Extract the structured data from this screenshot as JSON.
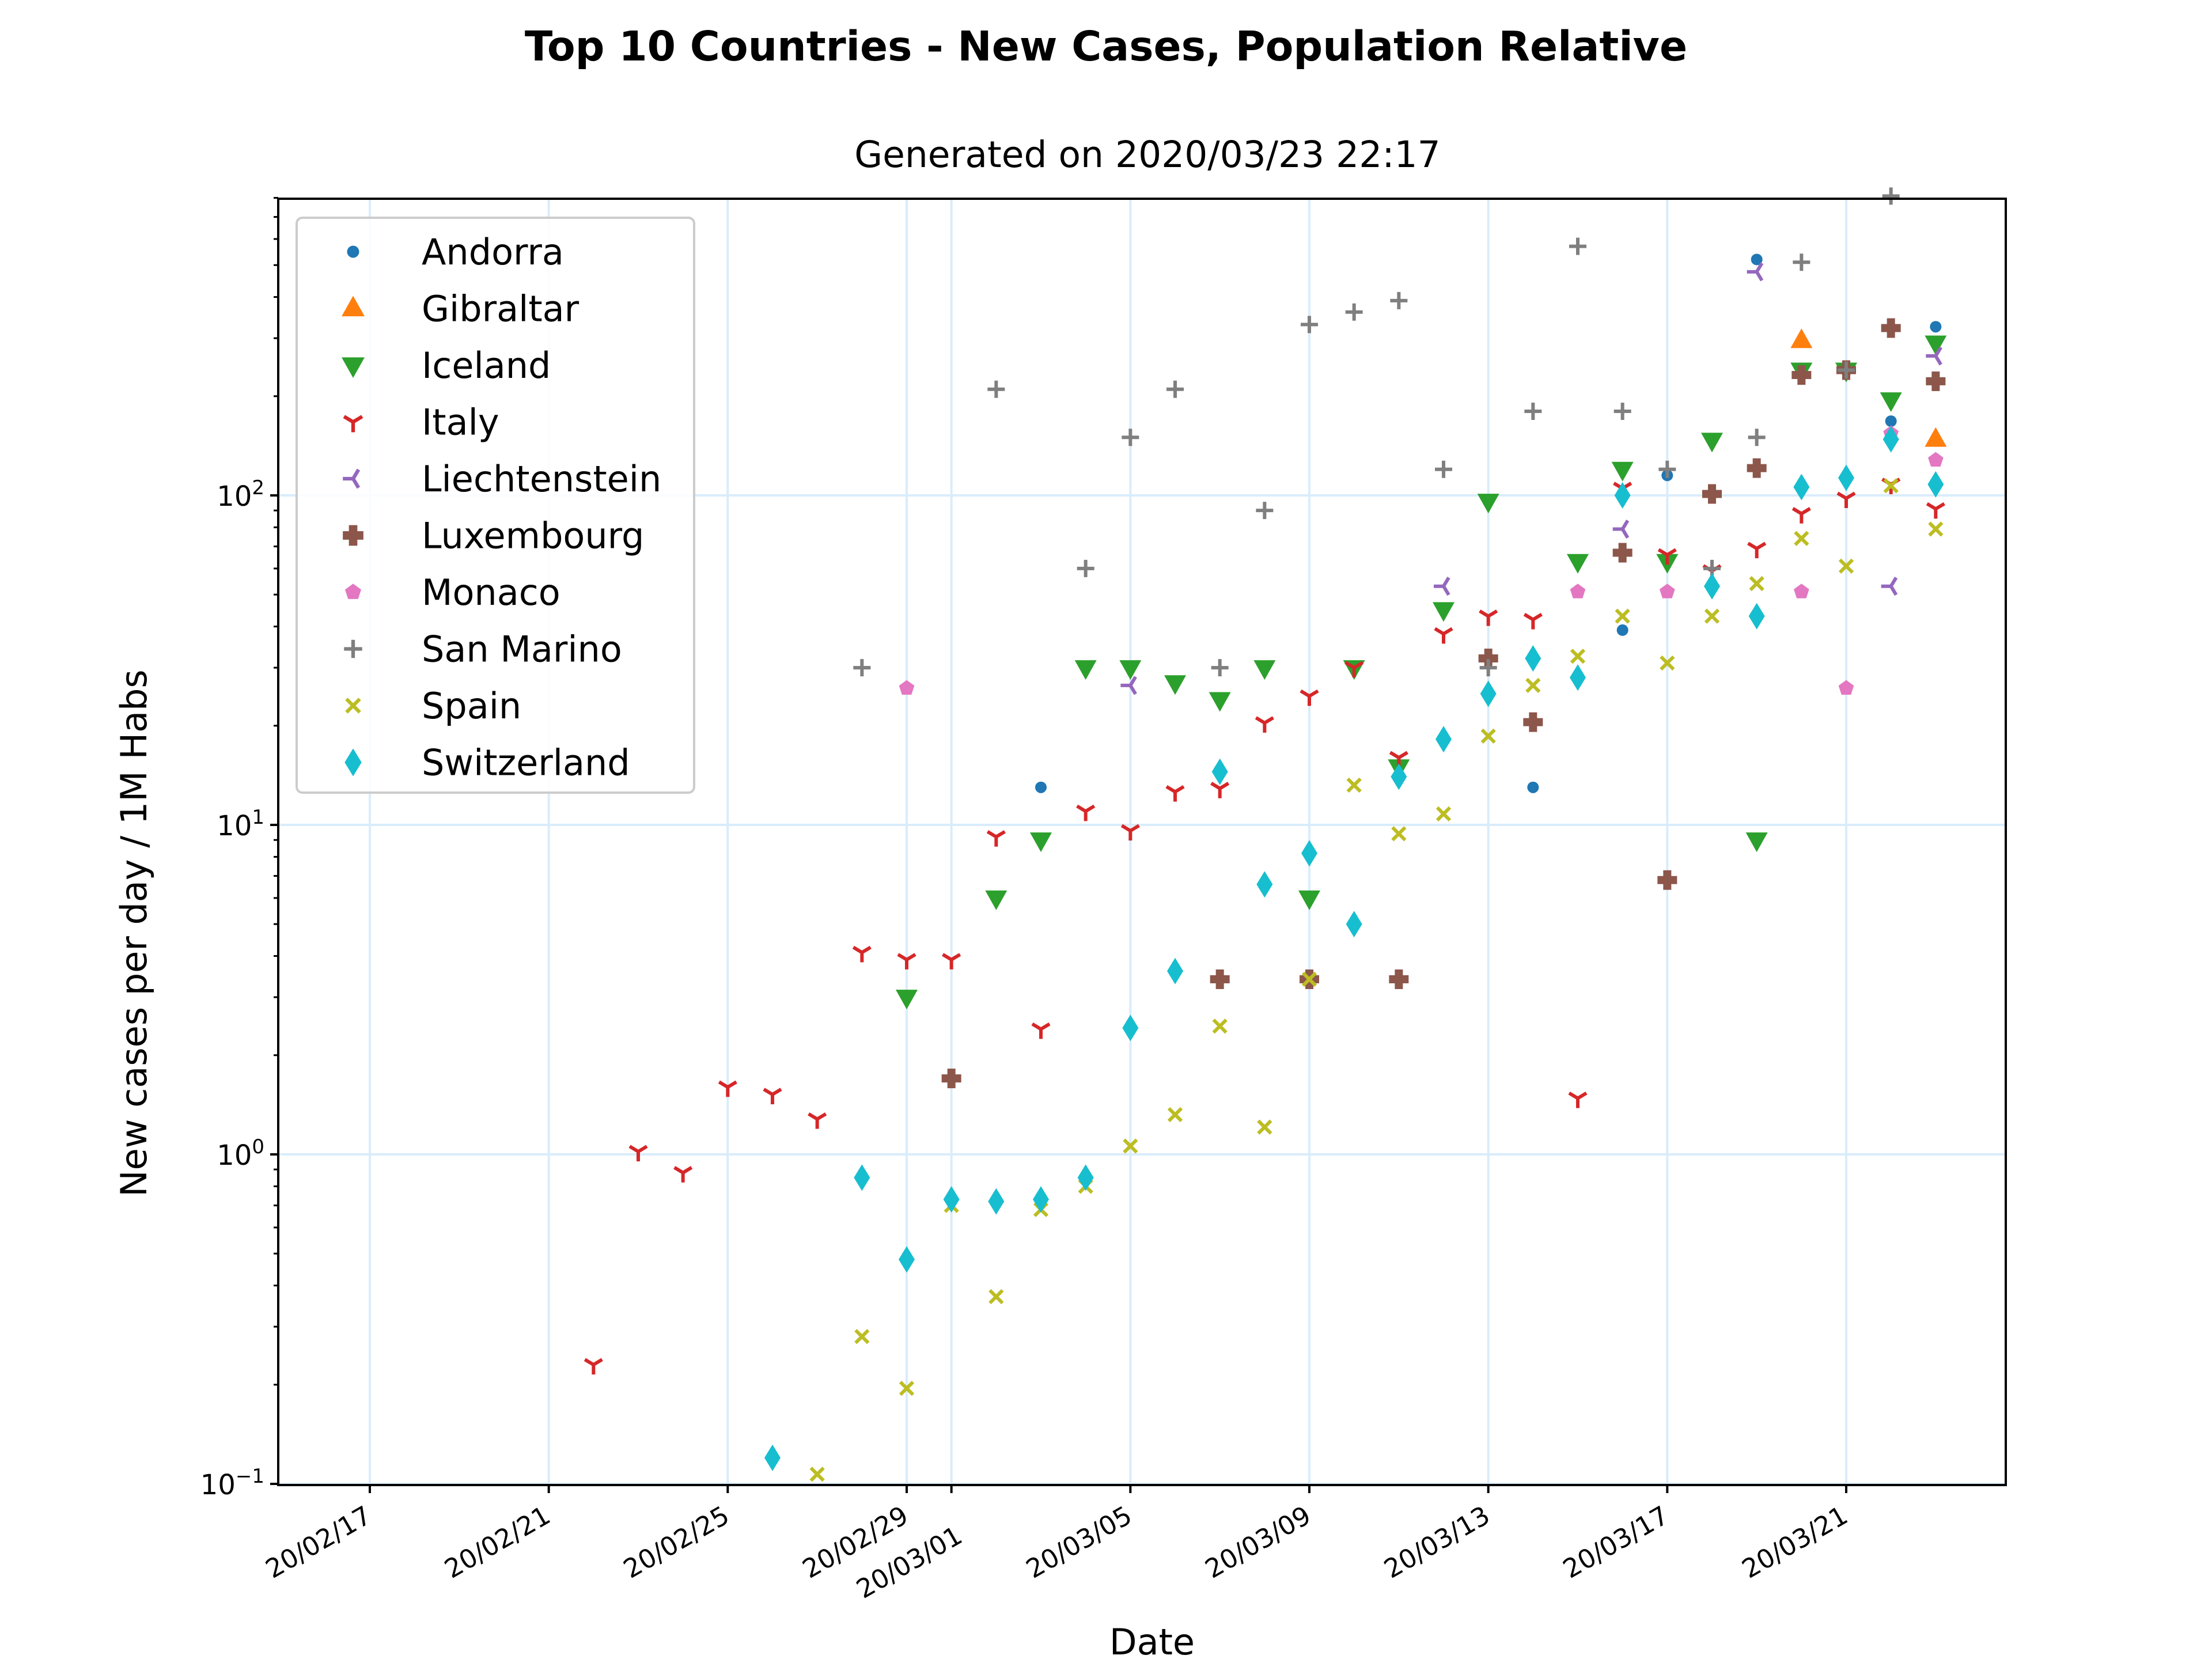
{
  "chart_data": {
    "type": "scatter",
    "title": "Top 10 Countries - New Cases, Population Relative",
    "subtitle": "Generated on 2020/03/23 22:17",
    "xlabel": "Date",
    "ylabel": "New cases per day / 1M Habs",
    "yscale": "log",
    "ylim": [
      0.1,
      800
    ],
    "xlim": [
      "2020-02-14",
      "2020-03-24"
    ],
    "x_ticks": [
      {
        "date": "2020-02-17",
        "label": "20/02/17"
      },
      {
        "date": "2020-02-21",
        "label": "20/02/21"
      },
      {
        "date": "2020-02-25",
        "label": "20/02/25"
      },
      {
        "date": "2020-02-29",
        "label": "20/02/29"
      },
      {
        "date": "2020-03-01",
        "label": "20/03/01"
      },
      {
        "date": "2020-03-05",
        "label": "20/03/05"
      },
      {
        "date": "2020-03-09",
        "label": "20/03/09"
      },
      {
        "date": "2020-03-13",
        "label": "20/03/13"
      },
      {
        "date": "2020-03-17",
        "label": "20/03/17"
      },
      {
        "date": "2020-03-21",
        "label": "20/03/21"
      }
    ],
    "y_ticks": [
      {
        "value": 0.1,
        "base": "10",
        "exp": "−1"
      },
      {
        "value": 1,
        "base": "10",
        "exp": "0"
      },
      {
        "value": 10,
        "base": "10",
        "exp": "1"
      },
      {
        "value": 100,
        "base": "10",
        "exp": "2"
      }
    ],
    "grid": true,
    "legend_position": "top-left",
    "series": [
      {
        "name": "Andorra",
        "marker": "point",
        "color": "#1f77b4",
        "points": [
          [
            "2020-03-03",
            13
          ],
          [
            "2020-03-14",
            13
          ],
          [
            "2020-03-16",
            39
          ],
          [
            "2020-03-17",
            115
          ],
          [
            "2020-03-19",
            520
          ],
          [
            "2020-03-22",
            168
          ],
          [
            "2020-03-23",
            325
          ]
        ]
      },
      {
        "name": "Gibraltar",
        "marker": "triangle-up",
        "color": "#ff7f0e",
        "points": [
          [
            "2020-03-20",
            295
          ],
          [
            "2020-03-23",
            148
          ]
        ]
      },
      {
        "name": "Iceland",
        "marker": "triangle-down",
        "color": "#2ca02c",
        "points": [
          [
            "2020-02-29",
            3
          ],
          [
            "2020-03-02",
            6
          ],
          [
            "2020-03-03",
            9
          ],
          [
            "2020-03-04",
            30
          ],
          [
            "2020-03-05",
            30
          ],
          [
            "2020-03-06",
            27
          ],
          [
            "2020-03-07",
            24
          ],
          [
            "2020-03-08",
            30
          ],
          [
            "2020-03-09",
            6
          ],
          [
            "2020-03-10",
            30
          ],
          [
            "2020-03-11",
            15
          ],
          [
            "2020-03-12",
            45
          ],
          [
            "2020-03-13",
            96
          ],
          [
            "2020-03-15",
            63
          ],
          [
            "2020-03-16",
            120
          ],
          [
            "2020-03-17",
            63
          ],
          [
            "2020-03-18",
            147
          ],
          [
            "2020-03-19",
            9
          ],
          [
            "2020-03-20",
            240
          ],
          [
            "2020-03-21",
            240
          ],
          [
            "2020-03-22",
            195
          ],
          [
            "2020-03-23",
            290
          ]
        ]
      },
      {
        "name": "Italy",
        "marker": "tri-down",
        "color": "#d62728",
        "points": [
          [
            "2020-02-22",
            0.23
          ],
          [
            "2020-02-23",
            1.02
          ],
          [
            "2020-02-24",
            0.88
          ],
          [
            "2020-02-25",
            1.6
          ],
          [
            "2020-02-26",
            1.52
          ],
          [
            "2020-02-27",
            1.28
          ],
          [
            "2020-02-28",
            4.1
          ],
          [
            "2020-02-29",
            3.9
          ],
          [
            "2020-03-01",
            3.9
          ],
          [
            "2020-03-02",
            9.2
          ],
          [
            "2020-03-03",
            2.4
          ],
          [
            "2020-03-04",
            11
          ],
          [
            "2020-03-05",
            9.6
          ],
          [
            "2020-03-06",
            12.6
          ],
          [
            "2020-03-07",
            12.9
          ],
          [
            "2020-03-08",
            20.4
          ],
          [
            "2020-03-09",
            24.6
          ],
          [
            "2020-03-10",
            30
          ],
          [
            "2020-03-11",
            16
          ],
          [
            "2020-03-12",
            38
          ],
          [
            "2020-03-13",
            43
          ],
          [
            "2020-03-14",
            42
          ],
          [
            "2020-03-15",
            1.48
          ],
          [
            "2020-03-16",
            105
          ],
          [
            "2020-03-17",
            66
          ],
          [
            "2020-03-18",
            59
          ],
          [
            "2020-03-19",
            69
          ],
          [
            "2020-03-20",
            88
          ],
          [
            "2020-03-21",
            98
          ],
          [
            "2020-03-22",
            108
          ],
          [
            "2020-03-23",
            91
          ]
        ]
      },
      {
        "name": "Liechtenstein",
        "marker": "tri-left",
        "color": "#9467bd",
        "points": [
          [
            "2020-03-05",
            26.5
          ],
          [
            "2020-03-12",
            53
          ],
          [
            "2020-03-16",
            79
          ],
          [
            "2020-03-19",
            477
          ],
          [
            "2020-03-22",
            53
          ],
          [
            "2020-03-23",
            265
          ]
        ]
      },
      {
        "name": "Luxembourg",
        "marker": "plus-filled",
        "color": "#8c564b",
        "points": [
          [
            "2020-03-01",
            1.7
          ],
          [
            "2020-03-07",
            3.4
          ],
          [
            "2020-03-09",
            3.4
          ],
          [
            "2020-03-11",
            3.4
          ],
          [
            "2020-03-13",
            32
          ],
          [
            "2020-03-14",
            20.5
          ],
          [
            "2020-03-16",
            67
          ],
          [
            "2020-03-17",
            6.8
          ],
          [
            "2020-03-18",
            101
          ],
          [
            "2020-03-19",
            121
          ],
          [
            "2020-03-20",
            232
          ],
          [
            "2020-03-21",
            240
          ],
          [
            "2020-03-22",
            322
          ],
          [
            "2020-03-23",
            222
          ]
        ]
      },
      {
        "name": "Monaco",
        "marker": "pentagon",
        "color": "#e377c2",
        "points": [
          [
            "2020-02-29",
            26
          ],
          [
            "2020-03-15",
            51
          ],
          [
            "2020-03-17",
            51
          ],
          [
            "2020-03-20",
            51
          ],
          [
            "2020-03-21",
            26
          ],
          [
            "2020-03-22",
            154
          ],
          [
            "2020-03-23",
            128
          ]
        ]
      },
      {
        "name": "San Marino",
        "marker": "plus",
        "color": "#7f7f7f",
        "points": [
          [
            "2020-02-28",
            30
          ],
          [
            "2020-03-02",
            210
          ],
          [
            "2020-03-04",
            60
          ],
          [
            "2020-03-05",
            150
          ],
          [
            "2020-03-06",
            210
          ],
          [
            "2020-03-07",
            30
          ],
          [
            "2020-03-08",
            90
          ],
          [
            "2020-03-09",
            330
          ],
          [
            "2020-03-10",
            360
          ],
          [
            "2020-03-11",
            390
          ],
          [
            "2020-03-12",
            120
          ],
          [
            "2020-03-13",
            30
          ],
          [
            "2020-03-14",
            180
          ],
          [
            "2020-03-15",
            570
          ],
          [
            "2020-03-16",
            180
          ],
          [
            "2020-03-17",
            120
          ],
          [
            "2020-03-18",
            60
          ],
          [
            "2020-03-19",
            150
          ],
          [
            "2020-03-20",
            510
          ],
          [
            "2020-03-21",
            240
          ],
          [
            "2020-03-22",
            810
          ]
        ]
      },
      {
        "name": "Spain",
        "marker": "x",
        "color": "#bcbd22",
        "points": [
          [
            "2020-02-27",
            0.107
          ],
          [
            "2020-02-28",
            0.28
          ],
          [
            "2020-02-29",
            0.195
          ],
          [
            "2020-03-01",
            0.7
          ],
          [
            "2020-03-02",
            0.37
          ],
          [
            "2020-03-03",
            0.68
          ],
          [
            "2020-03-04",
            0.8
          ],
          [
            "2020-03-05",
            1.06
          ],
          [
            "2020-03-06",
            1.32
          ],
          [
            "2020-03-07",
            2.45
          ],
          [
            "2020-03-08",
            1.21
          ],
          [
            "2020-03-09",
            3.4
          ],
          [
            "2020-03-10",
            13.2
          ],
          [
            "2020-03-11",
            9.4
          ],
          [
            "2020-03-12",
            10.8
          ],
          [
            "2020-03-13",
            18.6
          ],
          [
            "2020-03-14",
            26.5
          ],
          [
            "2020-03-15",
            32.5
          ],
          [
            "2020-03-16",
            43
          ],
          [
            "2020-03-17",
            31
          ],
          [
            "2020-03-18",
            43
          ],
          [
            "2020-03-19",
            54
          ],
          [
            "2020-03-20",
            74
          ],
          [
            "2020-03-21",
            61
          ],
          [
            "2020-03-22",
            107
          ],
          [
            "2020-03-23",
            79
          ]
        ]
      },
      {
        "name": "Switzerland",
        "marker": "thin-diamond",
        "color": "#17becf",
        "points": [
          [
            "2020-02-26",
            0.12
          ],
          [
            "2020-02-28",
            0.85
          ],
          [
            "2020-02-29",
            0.48
          ],
          [
            "2020-03-01",
            0.73
          ],
          [
            "2020-03-02",
            0.72
          ],
          [
            "2020-03-03",
            0.73
          ],
          [
            "2020-03-04",
            0.85
          ],
          [
            "2020-03-05",
            2.42
          ],
          [
            "2020-03-06",
            3.6
          ],
          [
            "2020-03-07",
            14.5
          ],
          [
            "2020-03-08",
            6.6
          ],
          [
            "2020-03-09",
            8.2
          ],
          [
            "2020-03-10",
            5
          ],
          [
            "2020-03-11",
            14
          ],
          [
            "2020-03-12",
            18.2
          ],
          [
            "2020-03-13",
            25
          ],
          [
            "2020-03-14",
            32
          ],
          [
            "2020-03-15",
            28
          ],
          [
            "2020-03-16",
            100
          ],
          [
            "2020-03-18",
            53
          ],
          [
            "2020-03-19",
            43
          ],
          [
            "2020-03-20",
            106
          ],
          [
            "2020-03-21",
            113
          ],
          [
            "2020-03-22",
            148
          ],
          [
            "2020-03-23",
            108
          ]
        ]
      }
    ]
  }
}
